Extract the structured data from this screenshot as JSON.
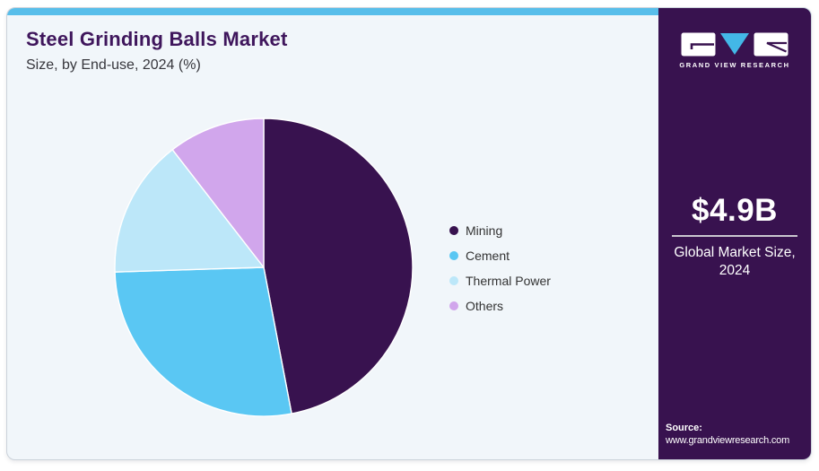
{
  "header": {
    "title": "Steel Grinding Balls Market",
    "subtitle": "Size, by End-use, 2024 (%)"
  },
  "chart_data": {
    "type": "pie",
    "title": "Steel Grinding Balls Market Size, by End-use, 2024 (%)",
    "categories": [
      "Mining",
      "Cement",
      "Thermal Power",
      "Others"
    ],
    "values": [
      47,
      27.5,
      15,
      10.5
    ],
    "unit": "%",
    "colors": [
      "#38124F",
      "#5AC7F3",
      "#BCE7F9",
      "#D1A6EC"
    ],
    "start_angle_deg": 0,
    "direction": "clockwise",
    "legend_position": "right",
    "slice_gap_color": "#ffffff"
  },
  "sidebar": {
    "brand_name": "GRAND VIEW RESEARCH",
    "stat_value": "$4.9B",
    "stat_label": "Global Market Size, 2024",
    "source_label": "Source:",
    "source_url": "www.grandviewresearch.com",
    "background": "#38124F",
    "logo_accent": "#43B7E7"
  },
  "colors": {
    "top_accent_bar": "#58BEEA",
    "card_background": "#F1F6FA",
    "title_text": "#3F165C",
    "subtitle_text": "#36363C",
    "legend_text": "#333333",
    "stat_divider": "#C9C6CF"
  }
}
